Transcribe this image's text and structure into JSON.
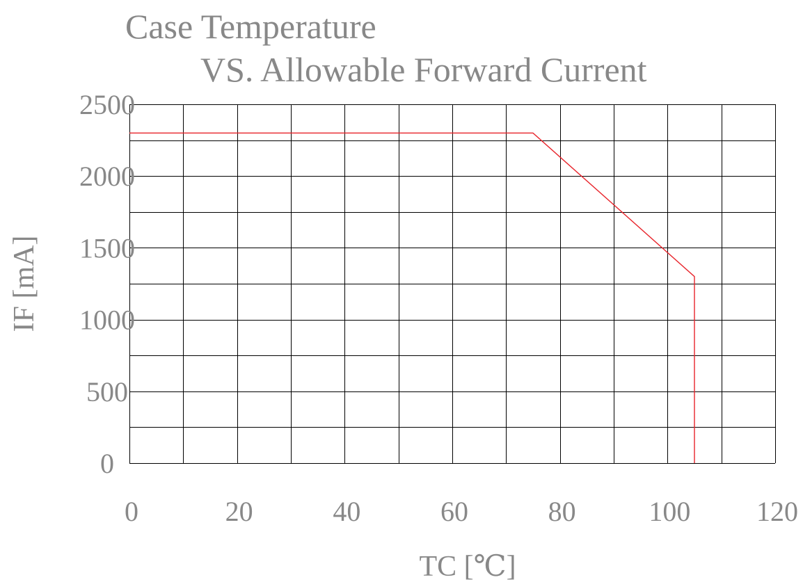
{
  "chart_data": {
    "type": "line",
    "title_line1": "Case Temperature",
    "title_line2": "VS. Allowable Forward Current",
    "xlabel": "TC [℃]",
    "ylabel": "IF [mA]",
    "xlim": [
      0,
      120
    ],
    "ylim": [
      0,
      2500
    ],
    "x_ticks": [
      0,
      20,
      40,
      60,
      80,
      100,
      120
    ],
    "x_tick_labels": [
      "0",
      "20",
      "40",
      "60",
      "80",
      "100",
      "120"
    ],
    "y_ticks": [
      0,
      500,
      1000,
      1500,
      2000,
      2500
    ],
    "y_tick_labels": [
      "0",
      "500",
      "1000",
      "1500",
      "2000",
      "2500"
    ],
    "x_grid": [
      0,
      10,
      20,
      30,
      40,
      50,
      60,
      70,
      80,
      90,
      100,
      110,
      120
    ],
    "y_grid": [
      0,
      250,
      500,
      750,
      1000,
      1250,
      1500,
      1750,
      2000,
      2250,
      2500
    ],
    "grid": true,
    "series": [
      {
        "color": "#e8242b",
        "x": [
          0,
          75,
          105,
          105
        ],
        "y": [
          2300,
          2300,
          1300,
          0
        ]
      }
    ]
  }
}
